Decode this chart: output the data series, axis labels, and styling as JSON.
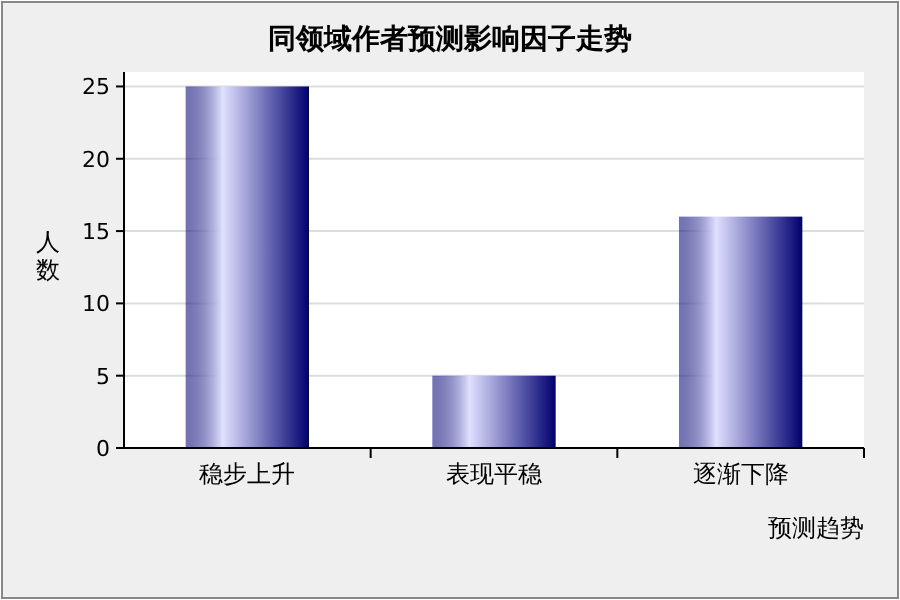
{
  "chart_data": {
    "type": "bar",
    "title": "同领域作者预测影响因子走势",
    "xlabel": "预测趋势",
    "ylabel": "人数",
    "categories": [
      "稳步上升",
      "表现平稳",
      "逐渐下降"
    ],
    "values": [
      25,
      5,
      16
    ],
    "color": "#000070",
    "ylim": [
      0,
      26
    ],
    "yticks": [
      0,
      5,
      10,
      15,
      20,
      25
    ],
    "grid": "y"
  }
}
